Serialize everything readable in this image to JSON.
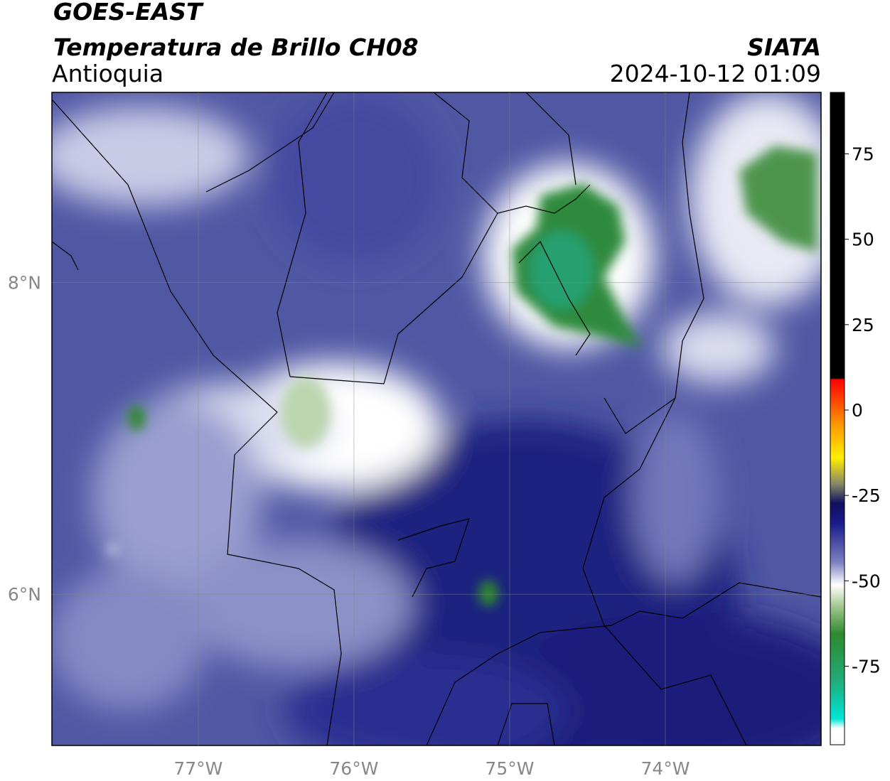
{
  "header": {
    "title": "GOES-EAST",
    "subtitle": "Temperatura de Brillo CH08",
    "region": "Antioquia",
    "source": "SIATA",
    "timestamp": "2024-10-12 01:09"
  },
  "map": {
    "xlim": [
      -77.94,
      -73.0
    ],
    "ylim": [
      5.03,
      9.22
    ],
    "xticks": [
      {
        "value": -77,
        "label": "77°W"
      },
      {
        "value": -76,
        "label": "76°W"
      },
      {
        "value": -75,
        "label": "75°W"
      },
      {
        "value": -74,
        "label": "74°W"
      }
    ],
    "yticks": [
      {
        "value": 8,
        "label": "8°N"
      },
      {
        "value": 6,
        "label": "6°N"
      }
    ],
    "grid": true
  },
  "colorbar": {
    "lim": [
      -98,
      93
    ],
    "ticks": [
      75,
      50,
      25,
      0,
      -25,
      -50,
      -75
    ]
  }
}
